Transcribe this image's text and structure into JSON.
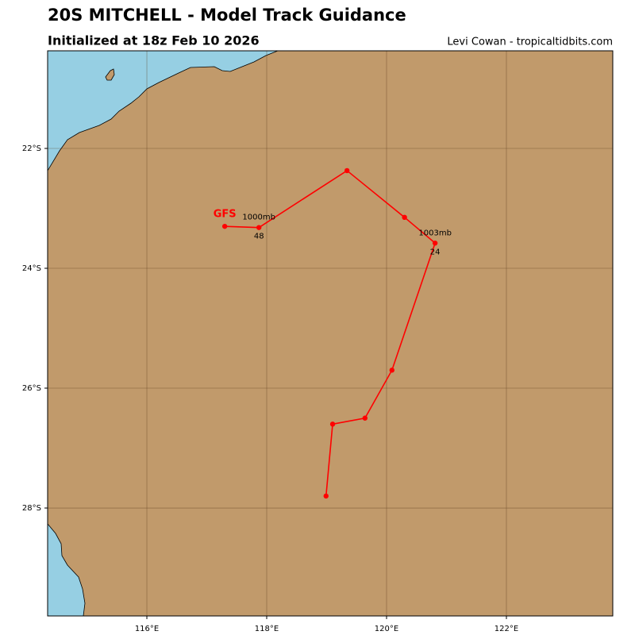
{
  "chart_data": {
    "type": "track",
    "title": "20S MITCHELL - Model Track Guidance",
    "subtitle": "Initialized at 18z Feb 10 2026",
    "credit": "Levi Cowan - tropicaltidbits.com",
    "xlim": [
      114.344,
      123.775
    ],
    "ylim": [
      -29.801,
      -20.371
    ],
    "xticks": [
      {
        "value": 116,
        "label": "116°E"
      },
      {
        "value": 118,
        "label": "118°E"
      },
      {
        "value": 120,
        "label": "120°E"
      },
      {
        "value": 122,
        "label": "122°E"
      }
    ],
    "yticks": [
      {
        "value": -22,
        "label": "22°S"
      },
      {
        "value": -24,
        "label": "24°S"
      },
      {
        "value": -26,
        "label": "26°S"
      },
      {
        "value": -28,
        "label": "28°S"
      }
    ],
    "grid": true,
    "series": [
      {
        "name": "GFS",
        "color": "#ff0000",
        "x": [
          118.99,
          119.1,
          119.64,
          120.09,
          120.81,
          120.3,
          119.34,
          117.87,
          117.3
        ],
        "values": [
          -27.8,
          -26.6,
          -26.5,
          -25.7,
          -23.58,
          -23.15,
          -22.37,
          -23.32,
          -23.3
        ],
        "pressure_labels": [
          null,
          null,
          null,
          null,
          "1003mb",
          null,
          null,
          "1000mb",
          null
        ],
        "hour_labels": [
          null,
          null,
          null,
          null,
          "24",
          null,
          null,
          "48",
          null
        ]
      }
    ]
  }
}
